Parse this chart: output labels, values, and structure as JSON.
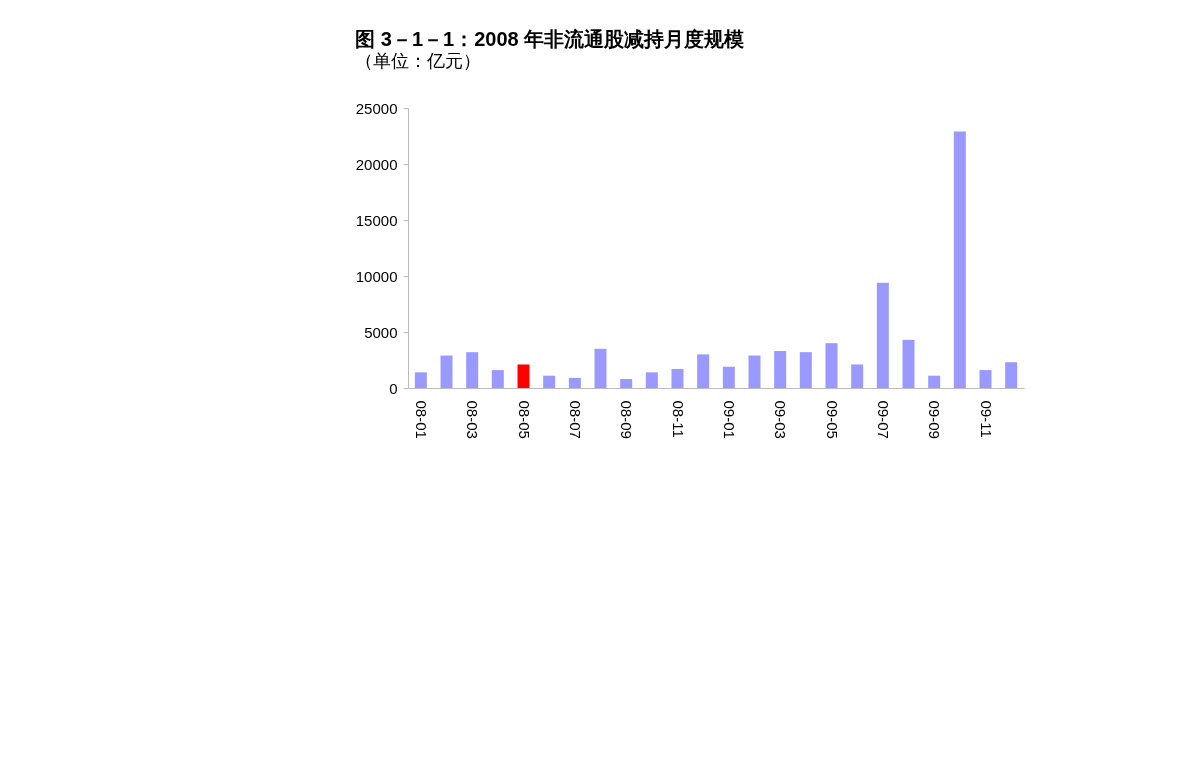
{
  "chart_data": {
    "type": "bar",
    "title": "图 3－1－1：2008 年非流通股减持月度规模",
    "subtitle": "（单位：亿元）",
    "categories": [
      "08-01",
      null,
      "08-03",
      null,
      "08-05",
      null,
      "08-07",
      null,
      "08-09",
      null,
      "08-11",
      null,
      "09-01",
      null,
      "09-03",
      null,
      "09-05",
      null,
      "09-07",
      null,
      "09-09",
      null,
      "09-11",
      null
    ],
    "values": [
      1400,
      2900,
      3200,
      1600,
      2100,
      1100,
      900,
      3500,
      800,
      1400,
      1700,
      3000,
      1900,
      2900,
      3300,
      3200,
      4000,
      2100,
      9400,
      4300,
      1100,
      22900,
      1600,
      2300
    ],
    "colors": [
      "#9999ff",
      "#9999ff",
      "#9999ff",
      "#9999ff",
      "#ff0000",
      "#9999ff",
      "#9999ff",
      "#9999ff",
      "#9999ff",
      "#9999ff",
      "#9999ff",
      "#9999ff",
      "#9999ff",
      "#9999ff",
      "#9999ff",
      "#9999ff",
      "#9999ff",
      "#9999ff",
      "#9999ff",
      "#9999ff",
      "#9999ff",
      "#9999ff",
      "#9999ff",
      "#9999ff"
    ],
    "ylim": [
      0,
      25000
    ],
    "yticks": [
      0,
      5000,
      10000,
      15000,
      20000,
      25000
    ],
    "grid": false
  }
}
